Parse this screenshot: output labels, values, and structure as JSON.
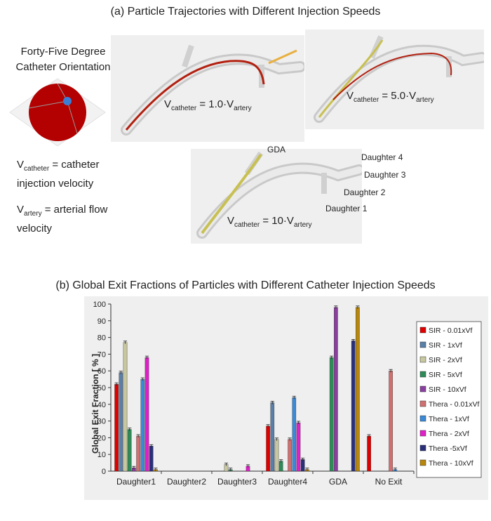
{
  "panel_a": {
    "title": "(a) Particle Trajectories with Different Injection Speeds",
    "orientation_title_line1": "Forty-Five Degree",
    "orientation_title_line2": "Catheter Orientation",
    "def_catheter_sym": "V",
    "def_catheter_sub": "catheter",
    "def_catheter_text": " = catheter",
    "def_catheter_text2": "injection velocity",
    "def_artery_sym": "V",
    "def_artery_sub": "artery",
    "def_artery_text": " = arterial flow",
    "def_artery_text2": "velocity",
    "cases": [
      {
        "pre": "V",
        "sub1": "catheter",
        "mid": " = 1.0·V",
        "sub2": "artery"
      },
      {
        "pre": "V",
        "sub1": "catheter",
        "mid": " = 5.0·V",
        "sub2": "artery"
      },
      {
        "pre": "V",
        "sub1": "catheter",
        "mid": " = 10·V",
        "sub2": "artery"
      }
    ],
    "branch_labels": {
      "gda": "GDA",
      "d4": "Daughter 4",
      "d3": "Daughter 3",
      "d2": "Daughter 2",
      "d1": "Daughter 1"
    },
    "colors": {
      "vessel": "#d9d9d9",
      "sphere": "#b30000",
      "catheter_dot": "#3a7fd5"
    }
  },
  "panel_b_title": "(b) Global Exit Fractions of Particles with Different Catheter Injection Speeds",
  "chart_data": {
    "type": "bar",
    "title": "",
    "xlabel": "",
    "ylabel": "Global Exit Fraction [ % ]",
    "ylim": [
      0,
      100
    ],
    "yticks": [
      0,
      10,
      20,
      30,
      40,
      50,
      60,
      70,
      80,
      90,
      100
    ],
    "grid": false,
    "legend_position": "right",
    "categories": [
      "Daughter1",
      "Daughter2",
      "Daughter3",
      "Daughter4",
      "GDA",
      "No Exit"
    ],
    "series": [
      {
        "name": "SIR - 0.01xVf",
        "color": "#e00000",
        "values": [
          52,
          0,
          0,
          27,
          0,
          21
        ]
      },
      {
        "name": "SIR - 1xVf",
        "color": "#5a7fa8",
        "values": [
          59,
          0,
          0,
          41,
          0,
          0
        ]
      },
      {
        "name": "SIR - 2xVf",
        "color": "#c8c8a0",
        "values": [
          77,
          0,
          4,
          19,
          0,
          0
        ]
      },
      {
        "name": "SIR - 5xVf",
        "color": "#2e8b57",
        "values": [
          25,
          0,
          1,
          6,
          68,
          0
        ]
      },
      {
        "name": "SIR - 10xVf",
        "color": "#8a3fa0",
        "values": [
          2,
          0,
          0,
          0,
          98,
          0
        ]
      },
      {
        "name": "Thera - 0.01xVf",
        "color": "#d07070",
        "values": [
          21,
          0,
          0,
          19,
          0,
          60
        ]
      },
      {
        "name": "Thera - 1xVf",
        "color": "#3a8ad8",
        "values": [
          55,
          0,
          0,
          44,
          0,
          1
        ]
      },
      {
        "name": "Thera - 2xVf",
        "color": "#e020c8",
        "values": [
          68,
          0,
          3,
          29,
          0,
          0
        ]
      },
      {
        "name": "Thera -5xVf",
        "color": "#2a2f7a",
        "values": [
          15,
          0,
          0,
          7,
          78,
          0
        ]
      },
      {
        "name": "Thera - 10xVf",
        "color": "#b8860b",
        "values": [
          1,
          0,
          0,
          1,
          98,
          0
        ]
      }
    ]
  }
}
